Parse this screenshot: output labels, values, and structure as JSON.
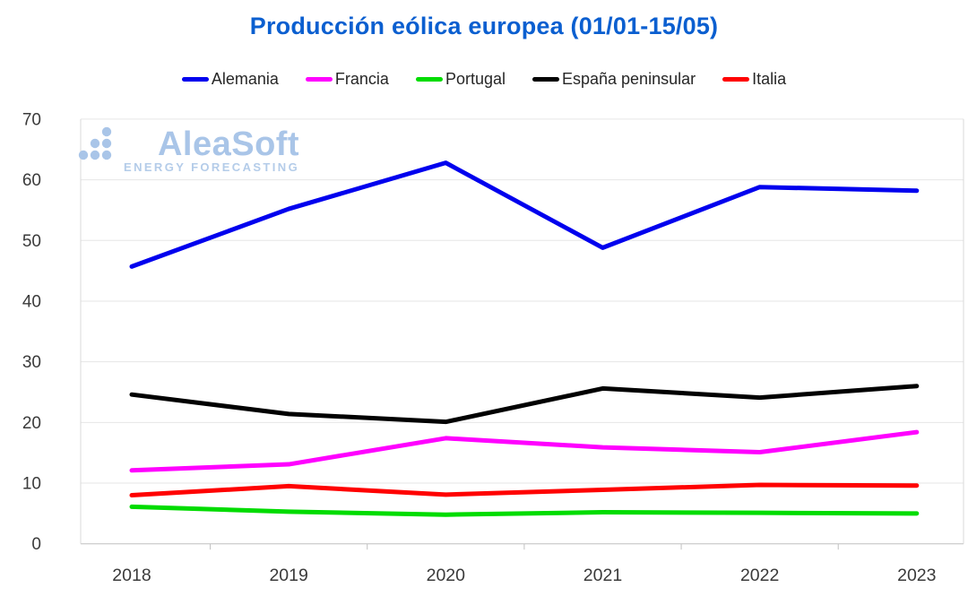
{
  "page": {
    "background": "#ffffff"
  },
  "watermark": {
    "brand": "AleaSoft",
    "tagline": "ENERGY FORECASTING"
  },
  "chart_data": {
    "type": "line",
    "title": "Producción eólica europea (01/01-15/05)",
    "title_color": "#0b5fd0",
    "categories": [
      "2018",
      "2019",
      "2020",
      "2021",
      "2022",
      "2023"
    ],
    "series": [
      {
        "name": "Alemania",
        "color": "#0000ee",
        "values": [
          45.7,
          55.2,
          62.8,
          48.8,
          58.8,
          58.2
        ]
      },
      {
        "name": "Francia",
        "color": "#ff00ff",
        "values": [
          12.1,
          13.1,
          17.4,
          15.9,
          15.1,
          18.4
        ]
      },
      {
        "name": "Portugal",
        "color": "#00dc00",
        "values": [
          6.1,
          5.3,
          4.8,
          5.2,
          5.1,
          5.0
        ]
      },
      {
        "name": "España peninsular",
        "color": "#000000",
        "values": [
          24.6,
          21.4,
          20.1,
          25.6,
          24.1,
          26.0
        ]
      },
      {
        "name": "Italia",
        "color": "#ff0000",
        "values": [
          8.0,
          9.5,
          8.1,
          8.9,
          9.7,
          9.6
        ]
      }
    ],
    "xlabel": "",
    "ylabel": "",
    "ylim": [
      0,
      70
    ],
    "yticks": [
      0,
      10,
      20,
      30,
      40,
      50,
      60,
      70
    ],
    "grid": true,
    "legend_position": "top",
    "axis_text_color": "#3a3a3a",
    "grid_color": "#e6e6e6",
    "axis_line_color": "#c0c0c0"
  }
}
